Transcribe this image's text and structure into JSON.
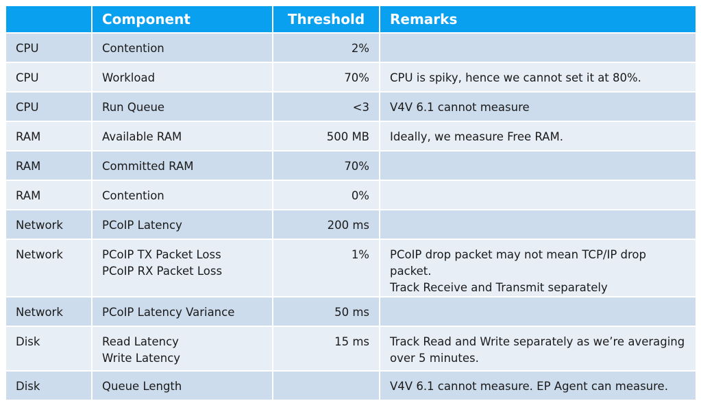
{
  "headers": [
    "",
    "Component",
    "Threshold",
    "Remarks"
  ],
  "rows": [
    {
      "area": "CPU",
      "component": [
        "Contention"
      ],
      "threshold": "2%",
      "remarks": [
        ""
      ]
    },
    {
      "area": "CPU",
      "component": [
        "Workload"
      ],
      "threshold": "70%",
      "remarks": [
        "CPU is spiky, hence we cannot set it at 80%."
      ]
    },
    {
      "area": "CPU",
      "component": [
        "Run Queue"
      ],
      "threshold": "<3",
      "remarks": [
        "V4V 6.1 cannot measure"
      ]
    },
    {
      "area": "RAM",
      "component": [
        "Available RAM"
      ],
      "threshold": "500 MB",
      "remarks": [
        "Ideally, we measure Free RAM."
      ]
    },
    {
      "area": "RAM",
      "component": [
        "Committed RAM"
      ],
      "threshold": "70%",
      "remarks": [
        ""
      ]
    },
    {
      "area": "RAM",
      "component": [
        "Contention"
      ],
      "threshold": "0%",
      "remarks": [
        ""
      ]
    },
    {
      "area": "Network",
      "component": [
        "PCoIP Latency"
      ],
      "threshold": "200 ms",
      "remarks": [
        ""
      ]
    },
    {
      "area": "Network",
      "component": [
        "PCoIP TX Packet Loss",
        "PCoIP RX Packet Loss"
      ],
      "threshold": "1%",
      "remarks": [
        "PCoIP drop packet may not mean TCP/IP drop packet.",
        "Track Receive and Transmit separately"
      ]
    },
    {
      "area": "Network",
      "component": [
        "PCoIP Latency Variance"
      ],
      "threshold": "50 ms",
      "remarks": [
        ""
      ]
    },
    {
      "area": "Disk",
      "component": [
        "Read Latency",
        "Write Latency"
      ],
      "threshold": "15 ms",
      "remarks": [
        "Track Read and Write separately as we’re averaging",
        "over 5 minutes."
      ]
    },
    {
      "area": "Disk",
      "component": [
        "Queue Length"
      ],
      "threshold": "",
      "remarks": [
        "V4V 6.1 cannot measure. EP Agent can measure."
      ]
    }
  ]
}
